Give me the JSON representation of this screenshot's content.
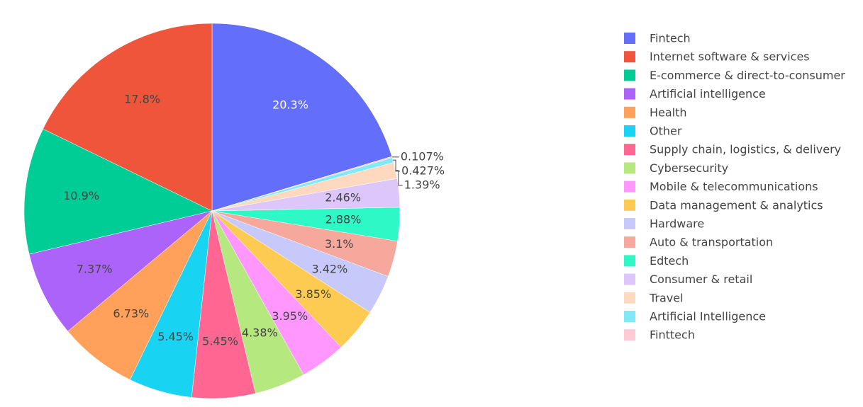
{
  "chart_data": {
    "type": "pie",
    "categories": [
      "Fintech",
      "Internet software & services",
      "E-commerce & direct-to-consumer",
      "Artificial intelligence",
      "Health",
      "Other",
      "Supply chain, logistics, & delivery",
      "Cybersecurity",
      "Mobile & telecommunications",
      "Data management & analytics",
      "Hardware",
      "Auto & transportation",
      "Edtech",
      "Consumer & retail",
      "Travel",
      "Artificial Intelligence",
      "Finttech"
    ],
    "values": [
      20.3,
      17.8,
      10.9,
      7.37,
      6.73,
      5.45,
      5.45,
      4.38,
      3.95,
      3.85,
      3.42,
      3.1,
      2.88,
      2.46,
      1.39,
      0.427,
      0.107
    ],
    "value_labels": [
      "20.3%",
      "17.8%",
      "10.9%",
      "7.37%",
      "6.73%",
      "5.45%",
      "5.45%",
      "4.38%",
      "3.95%",
      "3.85%",
      "3.42%",
      "3.1%",
      "2.88%",
      "2.46%",
      "1.39%",
      "0.427%",
      "0.107%"
    ],
    "colors": [
      "#636efa",
      "#ef553b",
      "#00cc96",
      "#ab63fa",
      "#ffa15a",
      "#19d3f3",
      "#ff6692",
      "#b6e880",
      "#ff97ff",
      "#fecb52",
      "#c6c9f9",
      "#f5a89b",
      "#2ef8c6",
      "#ddc6fa",
      "#ffd9bf",
      "#7ee9f8",
      "#ffc9d6"
    ],
    "legend": "right"
  }
}
